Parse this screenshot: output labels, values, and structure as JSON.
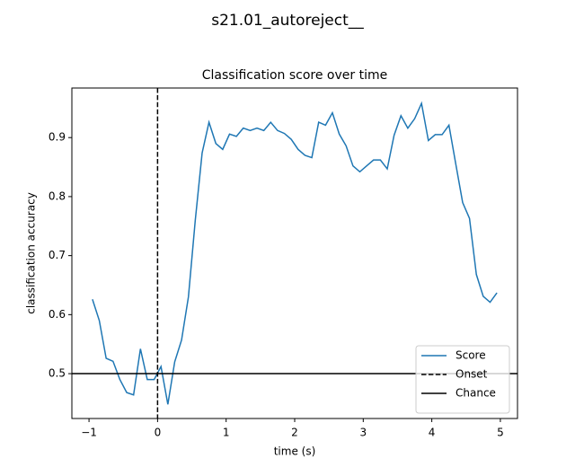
{
  "chart_data": {
    "type": "line",
    "suptitle": "s21.01_autoreject__",
    "title": "Classification score over time",
    "x_label": "time (s)",
    "y_label": "classification accuracy",
    "x": [
      -0.95,
      -0.85,
      -0.75,
      -0.65,
      -0.55,
      -0.45,
      -0.35,
      -0.25,
      -0.15,
      -0.05,
      0.05,
      0.15,
      0.25,
      0.35,
      0.45,
      0.55,
      0.65,
      0.75,
      0.85,
      0.95,
      1.05,
      1.15,
      1.25,
      1.35,
      1.45,
      1.55,
      1.65,
      1.75,
      1.85,
      1.95,
      2.05,
      2.15,
      2.25,
      2.35,
      2.45,
      2.55,
      2.65,
      2.75,
      2.85,
      2.95,
      3.05,
      3.15,
      3.25,
      3.35,
      3.45,
      3.55,
      3.65,
      3.75,
      3.85,
      3.95,
      4.05,
      4.15,
      4.25,
      4.35,
      4.45,
      4.55,
      4.65,
      4.75,
      4.85,
      4.95
    ],
    "series": [
      {
        "name": "Score",
        "color": "#1f77b4",
        "values": [
          0.626,
          0.59,
          0.526,
          0.521,
          0.49,
          0.468,
          0.464,
          0.542,
          0.49,
          0.49,
          0.512,
          0.448,
          0.52,
          0.557,
          0.63,
          0.76,
          0.874,
          0.926,
          0.89,
          0.88,
          0.906,
          0.902,
          0.916,
          0.912,
          0.916,
          0.912,
          0.926,
          0.912,
          0.907,
          0.897,
          0.88,
          0.87,
          0.866,
          0.926,
          0.921,
          0.942,
          0.906,
          0.886,
          0.852,
          0.842,
          0.852,
          0.862,
          0.862,
          0.847,
          0.904,
          0.937,
          0.916,
          0.932,
          0.958,
          0.895,
          0.905,
          0.905,
          0.921,
          0.855,
          0.79,
          0.763,
          0.668,
          0.631,
          0.621,
          0.637
        ]
      }
    ],
    "reference_lines": [
      {
        "name": "Onset",
        "x": 0,
        "color": "#000000",
        "style": "dashed"
      },
      {
        "name": "Chance",
        "y": 0.5,
        "color": "#000000",
        "style": "solid"
      }
    ],
    "xlim": [
      -1.25,
      5.25
    ],
    "ylim": [
      0.424,
      0.984
    ],
    "xticks": [
      {
        "value": -1,
        "label": "−1"
      },
      0,
      1,
      2,
      3,
      4,
      5
    ],
    "yticks": [
      0.5,
      0.6,
      0.7,
      0.8,
      0.9
    ],
    "legend": "lower right"
  }
}
